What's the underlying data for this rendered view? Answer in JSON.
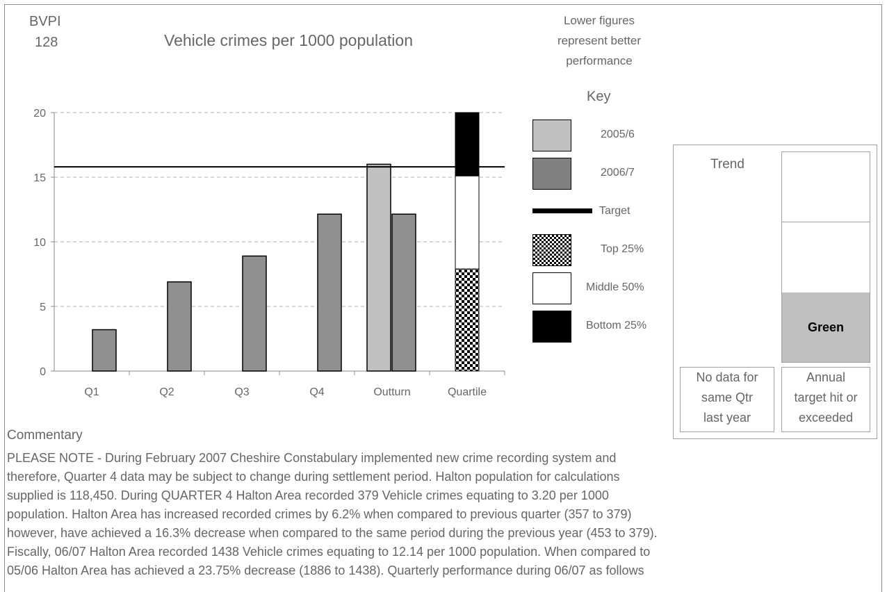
{
  "header": {
    "code_line1": "BVPI",
    "code_line2": "128",
    "title": "Vehicle crimes per 1000 population",
    "note_line1": "Lower figures",
    "note_line2": "represent better",
    "note_line3": "performance"
  },
  "chart_data": {
    "type": "bar",
    "categories": [
      "Q1",
      "Q2",
      "Q3",
      "Q4",
      "Outturn",
      "Quartile"
    ],
    "ylim": [
      0,
      20
    ],
    "yticks": [
      0,
      5,
      10,
      15,
      20
    ],
    "grid": "horizontal dashed",
    "series": [
      {
        "name": "2005/6",
        "color": "#c0c0c0",
        "values": [
          null,
          null,
          null,
          null,
          16.0,
          null
        ]
      },
      {
        "name": "2006/7",
        "color": "#909090",
        "values": [
          3.2,
          6.9,
          8.9,
          12.14,
          12.14,
          null
        ]
      }
    ],
    "target": 15.8,
    "quartile": {
      "top_25": [
        0,
        7.9
      ],
      "middle_50": [
        7.9,
        15.1
      ],
      "bottom_25": [
        15.1,
        20
      ]
    }
  },
  "key": {
    "title": "Key",
    "items": [
      {
        "label": "2005/6",
        "swatch": "light"
      },
      {
        "label": "2006/7",
        "swatch": "dark"
      },
      {
        "label": "Target",
        "swatch": "line"
      },
      {
        "label": "Top 25%",
        "swatch": "checker"
      },
      {
        "label": "Middle 50%",
        "swatch": "white"
      },
      {
        "label": "Bottom 25%",
        "swatch": "black"
      }
    ]
  },
  "panel": {
    "trend_label": "Trend",
    "status": "Green",
    "status_color": "#c0c0c0",
    "left_caption": [
      "No data for",
      "same Qtr",
      "last year"
    ],
    "right_caption": [
      "Annual",
      "target hit or",
      "exceeded"
    ]
  },
  "commentary": {
    "title": "Commentary",
    "lines": [
      "PLEASE NOTE - During February 2007 Cheshire Constabulary implemented new crime recording system and",
      "therefore, Quarter 4 data may be subject to change during settlement period. Halton population for calculations",
      "supplied is 118,450. During QUARTER 4 Halton Area recorded 379 Vehicle crimes equating to 3.20 per 1000",
      "population. Halton Area has increased recorded crimes by 6.2% when compared to previous quarter  (357 to 379)",
      "however, have achieved a 16.3% decrease when compared to the same period during the previous year (453 to 379).",
      "Fiscally, 06/07 Halton Area recorded 1438 Vehicle crimes equating to 12.14 per 1000 population. When compared to",
      "05/06 Halton Area has achieved a 23.75% decrease (1886 to 1438). Quarterly performance during 06/07 as follows"
    ]
  }
}
